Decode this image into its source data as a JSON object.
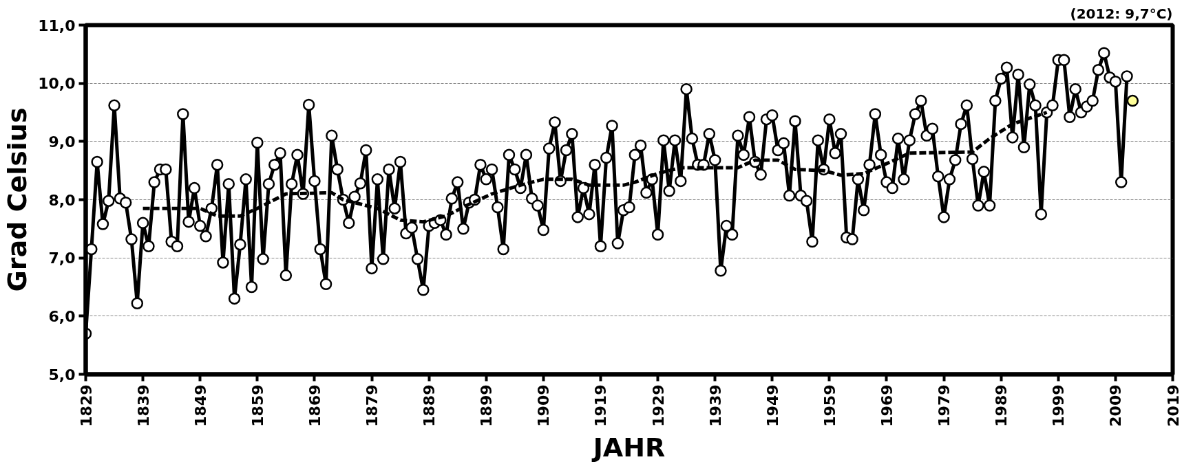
{
  "chart_data": {
    "type": "line",
    "xlabel": "JAHR",
    "ylabel": "Grad Celsius",
    "annotations": [
      "(2012: 9,7°C)"
    ],
    "xlim": [
      1829,
      2019
    ],
    "xticks": [
      1829,
      1839,
      1849,
      1859,
      1869,
      1879,
      1889,
      1899,
      1909,
      1919,
      1929,
      1939,
      1949,
      1959,
      1969,
      1979,
      1989,
      1999,
      2009,
      2019
    ],
    "ylim": [
      5,
      11
    ],
    "yticks": [
      {
        "value": 5,
        "label": "5,0"
      },
      {
        "value": 6,
        "label": "6,0"
      },
      {
        "value": 7,
        "label": "7,0"
      },
      {
        "value": 8,
        "label": "8,0"
      },
      {
        "value": 9,
        "label": "9,0"
      },
      {
        "value": 10,
        "label": "10,0"
      },
      {
        "value": 11,
        "label": "11,0"
      }
    ],
    "grid": "y",
    "series": [
      {
        "color": "#000000",
        "marker": "circle",
        "line_style": "solid",
        "x": [
          1829,
          1830,
          1831,
          1832,
          1833,
          1834,
          1835,
          1836,
          1837,
          1838,
          1839,
          1840,
          1841,
          1842,
          1843,
          1844,
          1845,
          1846,
          1847,
          1848,
          1849,
          1850,
          1851,
          1852,
          1853,
          1854,
          1855,
          1856,
          1857,
          1858,
          1859,
          1860,
          1861,
          1862,
          1863,
          1864,
          1865,
          1866,
          1867,
          1868,
          1869,
          1870,
          1871,
          1872,
          1873,
          1874,
          1875,
          1876,
          1877,
          1878,
          1879,
          1880,
          1881,
          1882,
          1883,
          1884,
          1885,
          1886,
          1887,
          1888,
          1889,
          1890,
          1891,
          1892,
          1893,
          1894,
          1895,
          1896,
          1897,
          1898,
          1899,
          1900,
          1901,
          1902,
          1903,
          1904,
          1905,
          1906,
          1907,
          1908,
          1909,
          1910,
          1911,
          1912,
          1913,
          1914,
          1915,
          1916,
          1917,
          1918,
          1919,
          1920,
          1921,
          1922,
          1923,
          1924,
          1925,
          1926,
          1927,
          1928,
          1929,
          1930,
          1931,
          1932,
          1933,
          1934,
          1935,
          1936,
          1937,
          1938,
          1939,
          1940,
          1941,
          1942,
          1943,
          1944,
          1945,
          1946,
          1947,
          1948,
          1949,
          1950,
          1951,
          1952,
          1953,
          1954,
          1955,
          1956,
          1957,
          1958,
          1959,
          1960,
          1961,
          1962,
          1963,
          1964,
          1965,
          1966,
          1967,
          1968,
          1969,
          1970,
          1971,
          1972,
          1973,
          1974,
          1975,
          1976,
          1977,
          1978,
          1979,
          1980,
          1981,
          1982,
          1983,
          1984,
          1985,
          1986,
          1987,
          1988,
          1989,
          1990,
          1991,
          1992,
          1993,
          1994,
          1995,
          1996,
          1997,
          1998,
          1999,
          2000,
          2001,
          2002,
          2003,
          2004,
          2005,
          2006,
          2007,
          2008,
          2009,
          2010,
          2011
        ],
        "values": [
          5.7,
          7.15,
          8.65,
          7.58,
          7.98,
          9.62,
          8.02,
          7.95,
          7.32,
          6.22,
          7.6,
          7.2,
          8.3,
          8.52,
          8.52,
          7.28,
          7.2,
          9.47,
          7.62,
          8.2,
          7.55,
          7.37,
          7.85,
          8.6,
          6.92,
          8.27,
          6.3,
          7.23,
          8.35,
          6.5,
          8.98,
          6.98,
          8.27,
          8.6,
          8.8,
          6.7,
          8.27,
          8.77,
          8.1,
          9.63,
          8.32,
          7.15,
          6.55,
          9.1,
          8.52,
          8.0,
          7.6,
          8.05,
          8.28,
          8.85,
          6.82,
          8.35,
          6.98,
          8.52,
          7.85,
          8.65,
          7.42,
          7.52,
          6.98,
          6.45,
          7.55,
          7.6,
          7.65,
          7.4,
          8.02,
          8.3,
          7.5,
          7.95,
          8.0,
          8.6,
          8.35,
          8.52,
          7.87,
          7.15,
          8.77,
          8.52,
          8.2,
          8.77,
          8.02,
          7.9,
          7.48,
          8.88,
          9.33,
          8.32,
          8.85,
          9.13,
          7.7,
          8.2,
          7.75,
          8.6,
          7.2,
          8.72,
          9.27,
          7.25,
          7.82,
          7.87,
          8.77,
          8.93,
          8.12,
          8.35,
          7.4,
          9.02,
          8.15,
          9.02,
          8.32,
          9.9,
          9.05,
          8.6,
          8.6,
          9.13,
          8.68,
          6.78,
          7.55,
          7.4,
          9.1,
          8.77,
          9.42,
          8.65,
          8.43,
          9.38,
          9.45,
          8.85,
          8.97,
          8.07,
          9.35,
          8.07,
          7.98,
          7.28,
          9.02,
          8.52,
          9.38,
          8.8,
          9.13,
          7.35,
          7.32,
          8.35,
          7.82,
          8.6,
          9.47,
          8.77,
          8.3,
          8.2,
          9.05,
          8.35,
          9.02,
          9.47,
          9.7,
          9.1,
          9.22,
          8.4,
          7.7,
          8.35,
          8.68,
          9.3,
          9.62,
          8.7,
          7.9,
          8.48,
          7.9,
          9.7,
          10.08,
          10.27,
          9.07,
          10.15,
          8.9,
          9.98,
          9.62,
          7.75,
          9.5,
          9.62,
          10.4,
          10.4,
          9.42,
          9.9,
          9.5,
          9.6,
          9.7,
          10.23,
          10.52,
          10.1,
          10.03,
          8.3,
          10.12
        ]
      },
      {
        "color": "#000000",
        "marker": "none",
        "line_style": "dashed",
        "x": [
          1839,
          1849,
          1852,
          1856,
          1859,
          1864,
          1872,
          1874,
          1880,
          1884,
          1888,
          1892,
          1896,
          1900,
          1905,
          1909,
          1914,
          1917,
          1923,
          1925,
          1929,
          1933,
          1937,
          1943,
          1946,
          1950,
          1953,
          1958,
          1961,
          1965,
          1969,
          1973,
          1984,
          1987,
          1991,
          1997
        ],
        "values": [
          7.85,
          7.85,
          7.72,
          7.72,
          7.85,
          8.1,
          8.12,
          8.0,
          7.85,
          7.65,
          7.62,
          7.72,
          7.92,
          8.1,
          8.25,
          8.35,
          8.35,
          8.25,
          8.25,
          8.3,
          8.45,
          8.55,
          8.55,
          8.55,
          8.68,
          8.68,
          8.52,
          8.5,
          8.42,
          8.45,
          8.62,
          8.8,
          8.82,
          9.05,
          9.3,
          9.5
        ]
      },
      {
        "type": "scatter",
        "color": "#ffff99",
        "marker": "circle",
        "x": [
          2012
        ],
        "values": [
          9.7
        ]
      }
    ]
  }
}
